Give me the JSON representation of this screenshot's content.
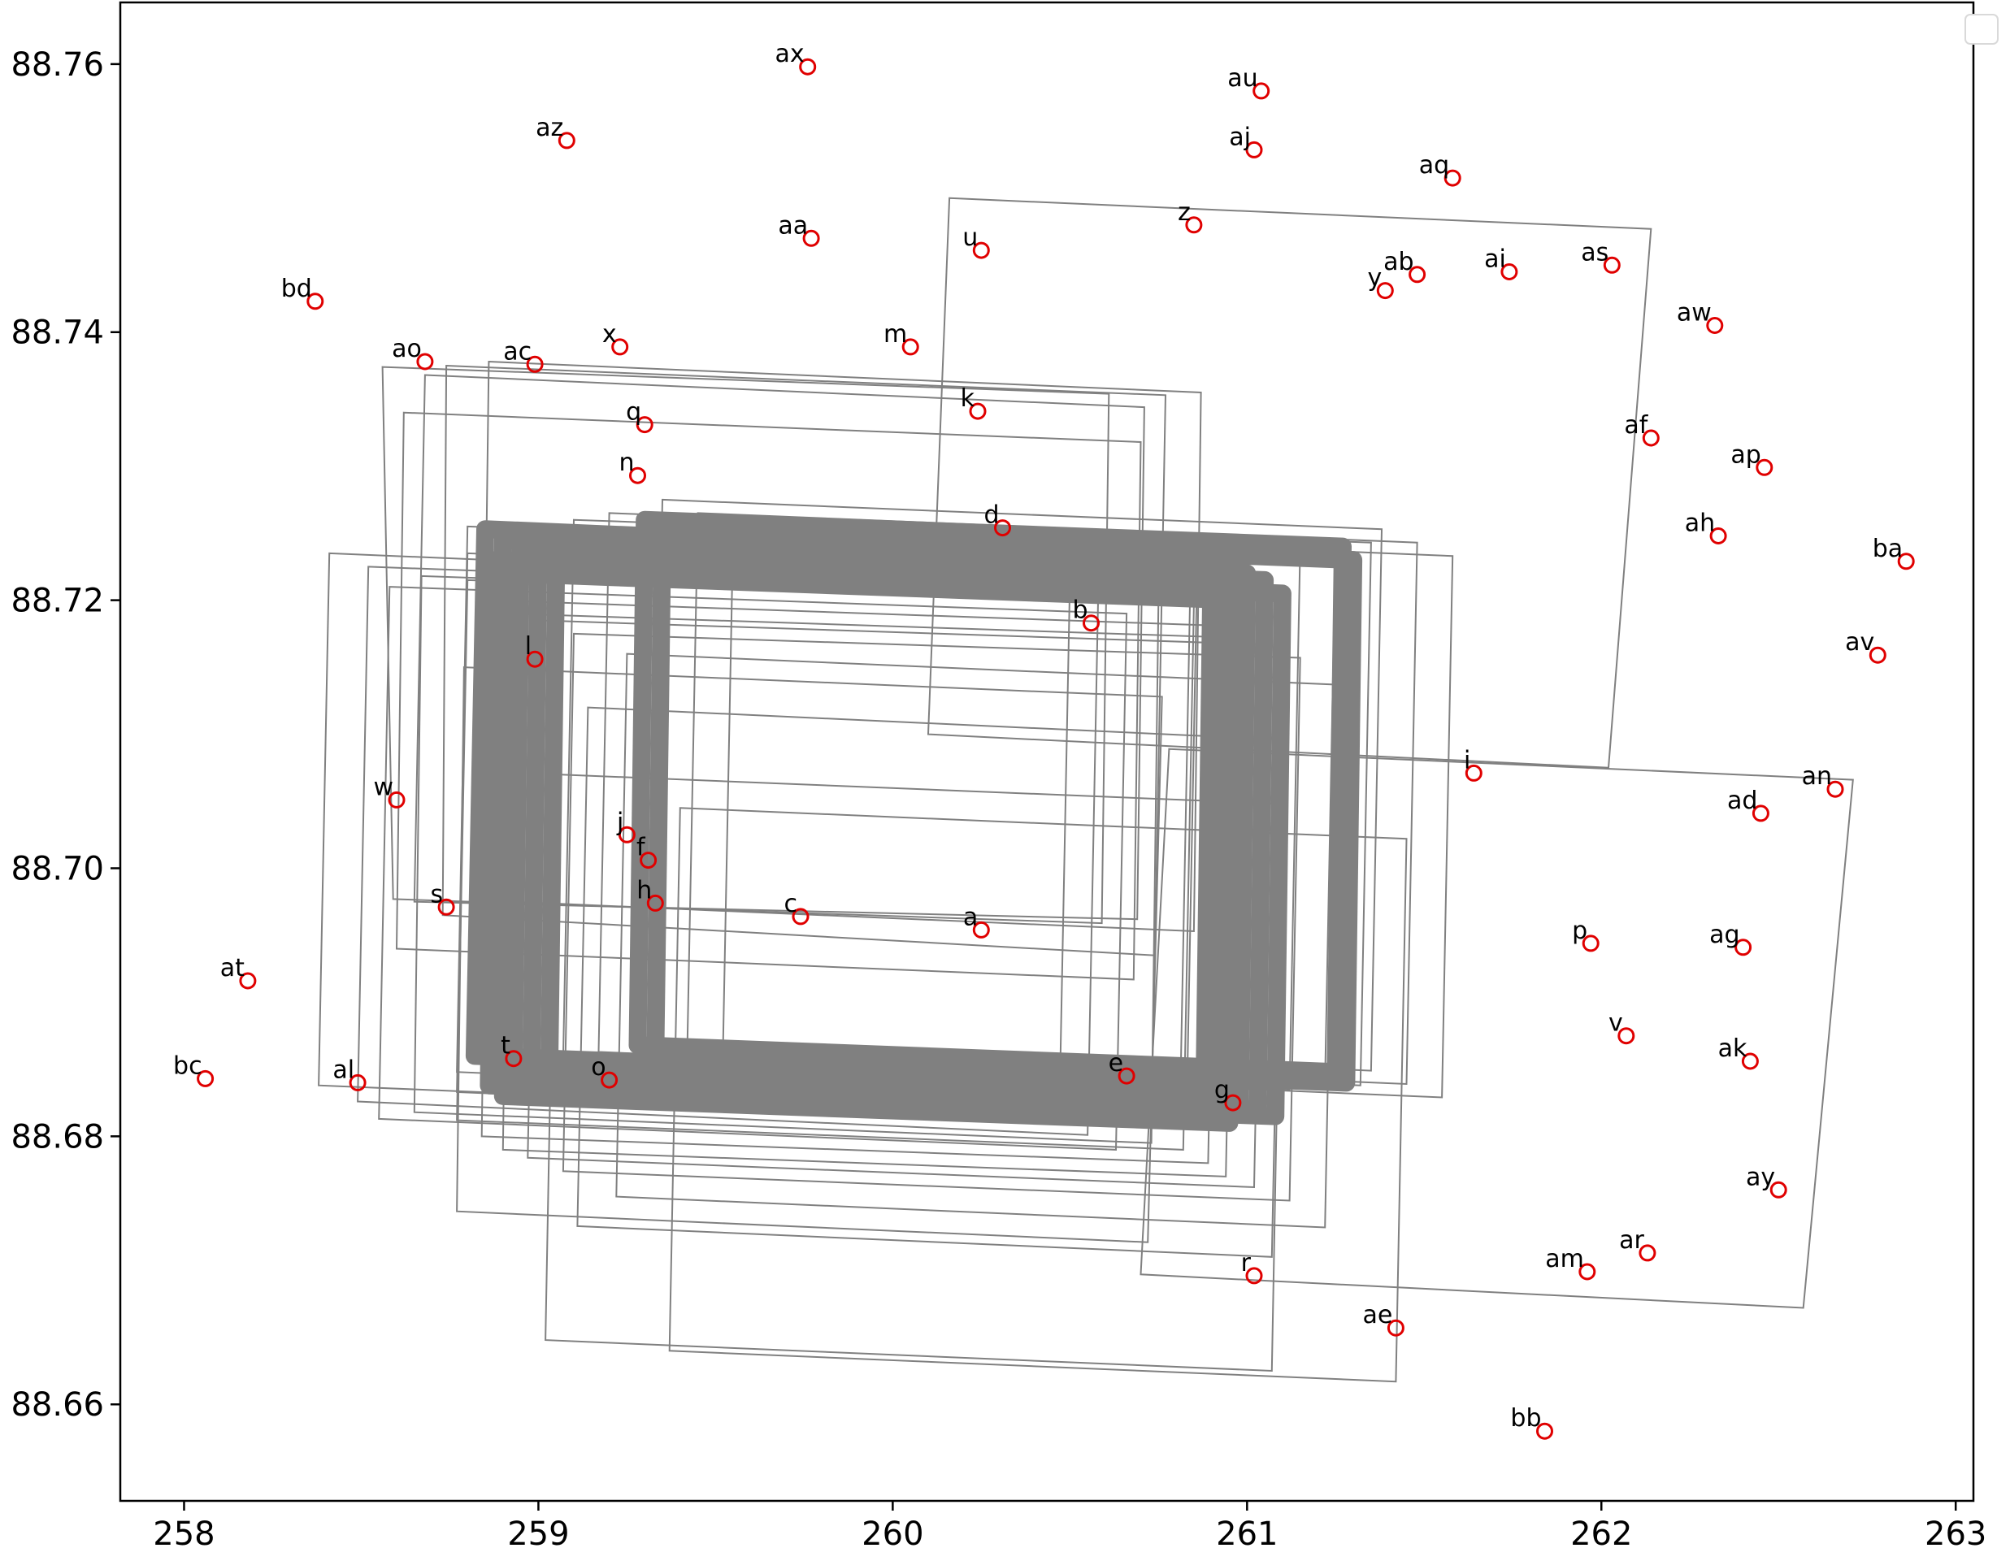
{
  "chart_data": {
    "type": "scatter",
    "title": "",
    "xlabel": "",
    "ylabel": "",
    "xlim": [
      257.82,
      263.05
    ],
    "ylim": [
      88.6528,
      88.7646
    ],
    "x_ticks": [
      258,
      259,
      260,
      261,
      262,
      263
    ],
    "y_ticks": [
      88.66,
      88.68,
      88.7,
      88.72,
      88.74,
      88.76
    ],
    "x_tick_labels": [
      "258",
      "259",
      "260",
      "261",
      "262",
      "263"
    ],
    "y_tick_labels": [
      "88.66",
      "88.68",
      "88.70",
      "88.72",
      "88.74",
      "88.76"
    ],
    "grid": false,
    "legend": {
      "placement": "top-right",
      "entries": []
    },
    "marker_color": "#e00000",
    "box_color": "#808080",
    "points": [
      {
        "label": "a",
        "x": 260.25,
        "y": 88.6954
      },
      {
        "label": "b",
        "x": 260.56,
        "y": 88.7183
      },
      {
        "label": "c",
        "x": 259.74,
        "y": 88.6964
      },
      {
        "label": "d",
        "x": 260.31,
        "y": 88.7254
      },
      {
        "label": "e",
        "x": 260.66,
        "y": 88.6845
      },
      {
        "label": "f",
        "x": 259.31,
        "y": 88.7006
      },
      {
        "label": "g",
        "x": 260.96,
        "y": 88.6825
      },
      {
        "label": "h",
        "x": 259.33,
        "y": 88.6974
      },
      {
        "label": "i",
        "x": 261.64,
        "y": 88.7071
      },
      {
        "label": "j",
        "x": 259.25,
        "y": 88.7025
      },
      {
        "label": "k",
        "x": 260.24,
        "y": 88.7341
      },
      {
        "label": "l",
        "x": 258.99,
        "y": 88.7156
      },
      {
        "label": "m",
        "x": 260.05,
        "y": 88.7389
      },
      {
        "label": "n",
        "x": 259.28,
        "y": 88.7293
      },
      {
        "label": "o",
        "x": 259.2,
        "y": 88.6842
      },
      {
        "label": "p",
        "x": 261.97,
        "y": 88.6944
      },
      {
        "label": "q",
        "x": 259.3,
        "y": 88.7331
      },
      {
        "label": "r",
        "x": 261.02,
        "y": 88.6696
      },
      {
        "label": "s",
        "x": 258.74,
        "y": 88.6971
      },
      {
        "label": "t",
        "x": 258.93,
        "y": 88.6858
      },
      {
        "label": "u",
        "x": 260.25,
        "y": 88.7461
      },
      {
        "label": "v",
        "x": 262.07,
        "y": 88.6875
      },
      {
        "label": "w",
        "x": 258.6,
        "y": 88.7051
      },
      {
        "label": "x",
        "x": 259.23,
        "y": 88.7389
      },
      {
        "label": "y",
        "x": 261.39,
        "y": 88.7431
      },
      {
        "label": "z",
        "x": 260.85,
        "y": 88.748
      },
      {
        "label": "aa",
        "x": 259.77,
        "y": 88.747
      },
      {
        "label": "ab",
        "x": 261.48,
        "y": 88.7443
      },
      {
        "label": "ac",
        "x": 258.99,
        "y": 88.7376
      },
      {
        "label": "ad",
        "x": 262.45,
        "y": 88.7041
      },
      {
        "label": "ae",
        "x": 261.42,
        "y": 88.6657
      },
      {
        "label": "af",
        "x": 262.14,
        "y": 88.7321
      },
      {
        "label": "ag",
        "x": 262.4,
        "y": 88.6941
      },
      {
        "label": "ah",
        "x": 262.33,
        "y": 88.7248
      },
      {
        "label": "ai",
        "x": 261.74,
        "y": 88.7445
      },
      {
        "label": "aj",
        "x": 261.02,
        "y": 88.7536
      },
      {
        "label": "ak",
        "x": 262.42,
        "y": 88.6856
      },
      {
        "label": "al",
        "x": 258.49,
        "y": 88.684
      },
      {
        "label": "am",
        "x": 261.96,
        "y": 88.6699
      },
      {
        "label": "an",
        "x": 262.66,
        "y": 88.7059
      },
      {
        "label": "ao",
        "x": 258.68,
        "y": 88.7378
      },
      {
        "label": "ap",
        "x": 262.46,
        "y": 88.7299
      },
      {
        "label": "aq",
        "x": 261.58,
        "y": 88.7515
      },
      {
        "label": "ar",
        "x": 262.13,
        "y": 88.6713
      },
      {
        "label": "as",
        "x": 262.03,
        "y": 88.745
      },
      {
        "label": "at",
        "x": 258.18,
        "y": 88.6916
      },
      {
        "label": "au",
        "x": 261.04,
        "y": 88.758
      },
      {
        "label": "av",
        "x": 262.78,
        "y": 88.7159
      },
      {
        "label": "aw",
        "x": 262.32,
        "y": 88.7405
      },
      {
        "label": "ax",
        "x": 259.76,
        "y": 88.7598
      },
      {
        "label": "ay",
        "x": 262.5,
        "y": 88.676
      },
      {
        "label": "az",
        "x": 259.08,
        "y": 88.7543
      },
      {
        "label": "ba",
        "x": 262.86,
        "y": 88.7229
      },
      {
        "label": "bb",
        "x": 261.84,
        "y": 88.658
      },
      {
        "label": "bc",
        "x": 258.06,
        "y": 88.6843
      },
      {
        "label": "bd",
        "x": 258.37,
        "y": 88.7423
      }
    ],
    "boxes": [
      {
        "corners": [
          [
            260.16,
            88.75
          ],
          [
            262.14,
            88.7477
          ],
          [
            262.02,
            88.7075
          ],
          [
            260.1,
            88.71
          ]
        ]
      },
      {
        "corners": [
          [
            260.78,
            88.7089
          ],
          [
            262.71,
            88.7066
          ],
          [
            262.57,
            88.6672
          ],
          [
            260.7,
            88.6697
          ]
        ]
      },
      {
        "corners": [
          [
            258.79,
            88.715
          ],
          [
            260.76,
            88.7128
          ],
          [
            260.72,
            88.6721
          ],
          [
            258.77,
            88.6744
          ]
        ]
      },
      {
        "corners": [
          [
            259.14,
            88.712
          ],
          [
            261.1,
            88.7096
          ],
          [
            261.07,
            88.671
          ],
          [
            259.11,
            88.6733
          ]
        ]
      },
      {
        "corners": [
          [
            258.56,
            88.7374
          ],
          [
            260.61,
            88.7354
          ],
          [
            260.59,
            88.6959
          ],
          [
            258.59,
            88.6977
          ]
        ]
      },
      {
        "corners": [
          [
            258.68,
            88.7368
          ],
          [
            260.71,
            88.7344
          ],
          [
            260.69,
            88.6962
          ],
          [
            258.65,
            88.6975
          ]
        ]
      },
      {
        "corners": [
          [
            258.74,
            88.7375
          ],
          [
            260.77,
            88.7353
          ],
          [
            260.74,
            88.6935
          ],
          [
            258.73,
            88.6965
          ]
        ]
      },
      {
        "corners": [
          [
            258.86,
            88.7378
          ],
          [
            260.87,
            88.7355
          ],
          [
            260.85,
            88.6953
          ],
          [
            258.84,
            88.6976
          ]
        ]
      },
      {
        "corners": [
          [
            258.62,
            88.734
          ],
          [
            260.7,
            88.7318
          ],
          [
            260.68,
            88.6917
          ],
          [
            258.6,
            88.694
          ]
        ]
      },
      {
        "corners": [
          [
            258.41,
            88.7235
          ],
          [
            260.5,
            88.7212
          ],
          [
            260.47,
            88.6815
          ],
          [
            258.38,
            88.6838
          ]
        ]
      },
      {
        "corners": [
          [
            258.52,
            88.7225
          ],
          [
            260.58,
            88.7205
          ],
          [
            260.55,
            88.6801
          ],
          [
            258.49,
            88.6826
          ]
        ]
      },
      {
        "corners": [
          [
            258.58,
            88.721
          ],
          [
            260.66,
            88.719
          ],
          [
            260.63,
            88.679
          ],
          [
            258.55,
            88.6813
          ]
        ]
      },
      {
        "corners": [
          [
            258.67,
            88.7218
          ],
          [
            260.75,
            88.7199
          ],
          [
            260.73,
            88.6795
          ],
          [
            258.65,
            88.6818
          ]
        ]
      },
      {
        "corners": [
          [
            258.8,
            88.7215
          ],
          [
            260.85,
            88.7197
          ],
          [
            260.82,
            88.679
          ],
          [
            258.77,
            88.6812
          ]
        ]
      },
      {
        "corners": [
          [
            258.86,
            88.72
          ],
          [
            260.92,
            88.7181
          ],
          [
            260.89,
            88.678
          ],
          [
            258.84,
            88.68
          ]
        ]
      },
      {
        "corners": [
          [
            258.92,
            88.719
          ],
          [
            260.97,
            88.7172
          ],
          [
            260.94,
            88.677
          ],
          [
            258.9,
            88.679
          ]
        ]
      },
      {
        "corners": [
          [
            259.0,
            88.7185
          ],
          [
            261.05,
            88.7167
          ],
          [
            261.02,
            88.6762
          ],
          [
            258.97,
            88.6784
          ]
        ]
      },
      {
        "corners": [
          [
            259.1,
            88.7175
          ],
          [
            261.15,
            88.7157
          ],
          [
            261.12,
            88.6752
          ],
          [
            259.07,
            88.6774
          ]
        ]
      },
      {
        "corners": [
          [
            259.35,
            88.7275
          ],
          [
            261.38,
            88.7253
          ],
          [
            261.35,
            88.6849
          ],
          [
            259.32,
            88.6872
          ]
        ]
      },
      {
        "corners": [
          [
            259.45,
            88.7265
          ],
          [
            261.48,
            88.7243
          ],
          [
            261.45,
            88.6839
          ],
          [
            259.42,
            88.6862
          ]
        ]
      },
      {
        "corners": [
          [
            259.55,
            88.7255
          ],
          [
            261.58,
            88.7233
          ],
          [
            261.55,
            88.6829
          ],
          [
            259.52,
            88.6852
          ]
        ]
      },
      {
        "corners": [
          [
            258.8,
            88.7235
          ],
          [
            260.84,
            88.7215
          ],
          [
            260.81,
            88.681
          ],
          [
            258.77,
            88.6833
          ]
        ]
      },
      {
        "corners": [
          [
            258.8,
            88.7255
          ],
          [
            260.86,
            88.7235
          ],
          [
            260.83,
            88.6825
          ],
          [
            258.77,
            88.6848
          ]
        ]
      },
      {
        "corners": [
          [
            258.9,
            88.725
          ],
          [
            260.95,
            88.723
          ],
          [
            260.93,
            88.6825
          ],
          [
            258.87,
            88.6848
          ]
        ]
      },
      {
        "corners": [
          [
            259.1,
            88.726
          ],
          [
            261.15,
            88.724
          ],
          [
            261.12,
            88.6835
          ],
          [
            259.07,
            88.6858
          ]
        ]
      },
      {
        "corners": [
          [
            259.2,
            88.7265
          ],
          [
            261.25,
            88.7245
          ],
          [
            261.22,
            88.684
          ],
          [
            259.17,
            88.6863
          ]
        ]
      },
      {
        "corners": [
          [
            259.3,
            88.7263
          ],
          [
            261.35,
            88.7243
          ],
          [
            261.32,
            88.6838
          ],
          [
            259.27,
            88.6861
          ]
        ]
      },
      {
        "corners": [
          [
            259.25,
            88.716
          ],
          [
            261.25,
            88.7137
          ],
          [
            261.22,
            88.6732
          ],
          [
            259.22,
            88.6755
          ]
        ]
      },
      {
        "corners": [
          [
            259.4,
            88.7045
          ],
          [
            261.45,
            88.7022
          ],
          [
            261.42,
            88.6617
          ],
          [
            259.37,
            88.664
          ]
        ]
      },
      {
        "corners": [
          [
            259.05,
            88.707
          ],
          [
            261.1,
            88.7048
          ],
          [
            261.07,
            88.6625
          ],
          [
            259.02,
            88.6648
          ]
        ]
      }
    ],
    "thick_boxes": [
      {
        "corners": [
          [
            258.85,
            88.7253
          ],
          [
            260.9,
            88.723
          ],
          [
            260.88,
            88.684
          ],
          [
            258.82,
            88.686
          ]
        ]
      },
      {
        "corners": [
          [
            258.9,
            88.7245
          ],
          [
            260.95,
            88.7225
          ],
          [
            260.93,
            88.683
          ],
          [
            258.88,
            88.685
          ]
        ]
      },
      {
        "corners": [
          [
            258.95,
            88.724
          ],
          [
            261.0,
            88.722
          ],
          [
            260.98,
            88.6825
          ],
          [
            258.93,
            88.6845
          ]
        ]
      },
      {
        "corners": [
          [
            259.0,
            88.7235
          ],
          [
            261.05,
            88.7215
          ],
          [
            261.03,
            88.682
          ],
          [
            258.98,
            88.684
          ]
        ]
      },
      {
        "corners": [
          [
            259.05,
            88.7225
          ],
          [
            261.1,
            88.7205
          ],
          [
            261.08,
            88.6815
          ],
          [
            259.03,
            88.6835
          ]
        ]
      },
      {
        "corners": [
          [
            259.3,
            88.726
          ],
          [
            261.27,
            88.724
          ],
          [
            261.25,
            88.6848
          ],
          [
            259.28,
            88.6868
          ]
        ]
      },
      {
        "corners": [
          [
            259.35,
            88.725
          ],
          [
            261.3,
            88.723
          ],
          [
            261.28,
            88.684
          ],
          [
            259.33,
            88.686
          ]
        ]
      },
      {
        "corners": [
          [
            258.88,
            88.723
          ],
          [
            260.93,
            88.721
          ],
          [
            260.91,
            88.6818
          ],
          [
            258.86,
            88.6838
          ]
        ]
      },
      {
        "corners": [
          [
            258.92,
            88.722
          ],
          [
            260.97,
            88.72
          ],
          [
            260.95,
            88.681
          ],
          [
            258.9,
            88.683
          ]
        ]
      }
    ]
  }
}
